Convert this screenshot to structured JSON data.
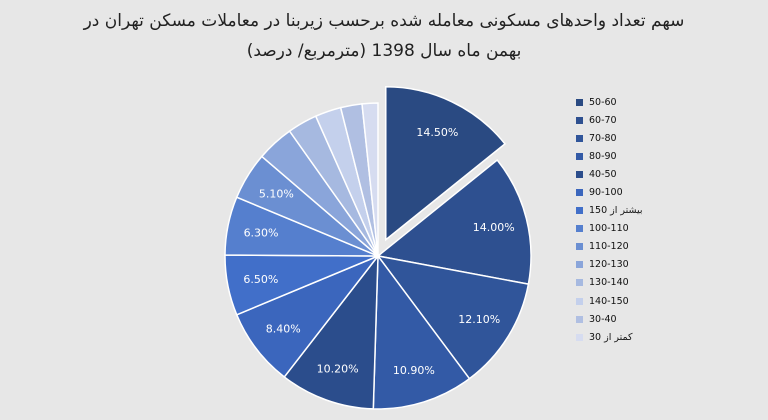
{
  "chart_data": {
    "type": "pie",
    "title_line1": "سهم تعداد واحدهای مسکونی معامله شده برحسب زیربنا در معاملات مسکن تهران در",
    "title_line2": "بهمن ماه سال 1398 (مترمربع/ درصد)",
    "legend_position": "right",
    "exploded_slice": "50-60",
    "slices": [
      {
        "category": "50-60",
        "value": 14.5,
        "label": "14.50%",
        "color": "#2a4a82"
      },
      {
        "category": "60-70",
        "value": 14.0,
        "label": "14.00%",
        "color": "#2e5090"
      },
      {
        "category": "70-80",
        "value": 12.1,
        "label": "12.10%",
        "color": "#30559a"
      },
      {
        "category": "80-90",
        "value": 10.9,
        "label": "10.90%",
        "color": "#335aa6"
      },
      {
        "category": "40-50",
        "value": 10.2,
        "label": "10.20%",
        "color": "#2b4d8c"
      },
      {
        "category": "90-100",
        "value": 8.4,
        "label": "8.40%",
        "color": "#3b66bd"
      },
      {
        "category": "بیشتر از 150",
        "value": 6.5,
        "label": "6.50%",
        "color": "#416fc9"
      },
      {
        "category": "100-110",
        "value": 6.3,
        "label": "6.30%",
        "color": "#557fce"
      },
      {
        "category": "110-120",
        "value": 5.1,
        "label": "5.10%",
        "color": "#6b8fd2"
      },
      {
        "category": "120-130",
        "value": 4.0,
        "label": "",
        "color": "#8aa5da"
      },
      {
        "category": "130-140",
        "value": 3.2,
        "label": "",
        "color": "#a6b9e0"
      },
      {
        "category": "140-150",
        "value": 2.8,
        "label": "",
        "color": "#c4d0ec"
      },
      {
        "category": "30-40",
        "value": 2.3,
        "label": "",
        "color": "#b0bfe2"
      },
      {
        "category": "کمتر از 30",
        "value": 1.7,
        "label": "",
        "color": "#d6dcf0"
      }
    ]
  }
}
